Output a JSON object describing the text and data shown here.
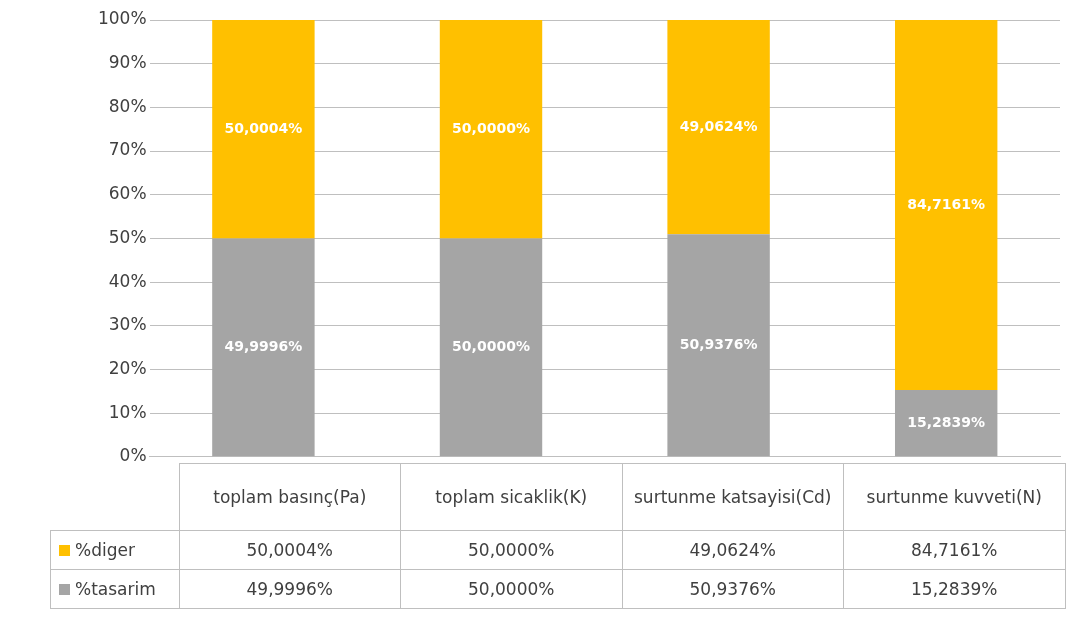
{
  "chart_data": {
    "type": "bar",
    "stacked": true,
    "categories": [
      "toplam basınç(Pa)",
      "toplam sicaklik(K)",
      "surtunme katsayisi(Cd)",
      "surtunme kuvveti(N)"
    ],
    "series": [
      {
        "name": "%tasarim",
        "color": "#a5a5a5",
        "values": [
          49.9996,
          50.0,
          50.9376,
          15.2839
        ],
        "value_labels": [
          "49,9996%",
          "50,0000%",
          "50,9376%",
          "15,2839%"
        ]
      },
      {
        "name": "%diger",
        "color": "#ffc000",
        "values": [
          50.0004,
          50.0,
          49.0624,
          84.7161
        ],
        "value_labels": [
          "50,0004%",
          "50,0000%",
          "49,0624%",
          "84,7161%"
        ]
      }
    ],
    "ylim": [
      0,
      100
    ],
    "yticks": [
      {
        "value": 0,
        "label": "0%"
      },
      {
        "value": 10,
        "label": "10%"
      },
      {
        "value": 20,
        "label": "20%"
      },
      {
        "value": 30,
        "label": "30%"
      },
      {
        "value": 40,
        "label": "40%"
      },
      {
        "value": 50,
        "label": "50%"
      },
      {
        "value": 60,
        "label": "60%"
      },
      {
        "value": 70,
        "label": "70%"
      },
      {
        "value": 80,
        "label": "80%"
      },
      {
        "value": 90,
        "label": "90%"
      },
      {
        "value": 100,
        "label": "100%"
      }
    ],
    "grid": "y",
    "legend": "bottom left"
  }
}
